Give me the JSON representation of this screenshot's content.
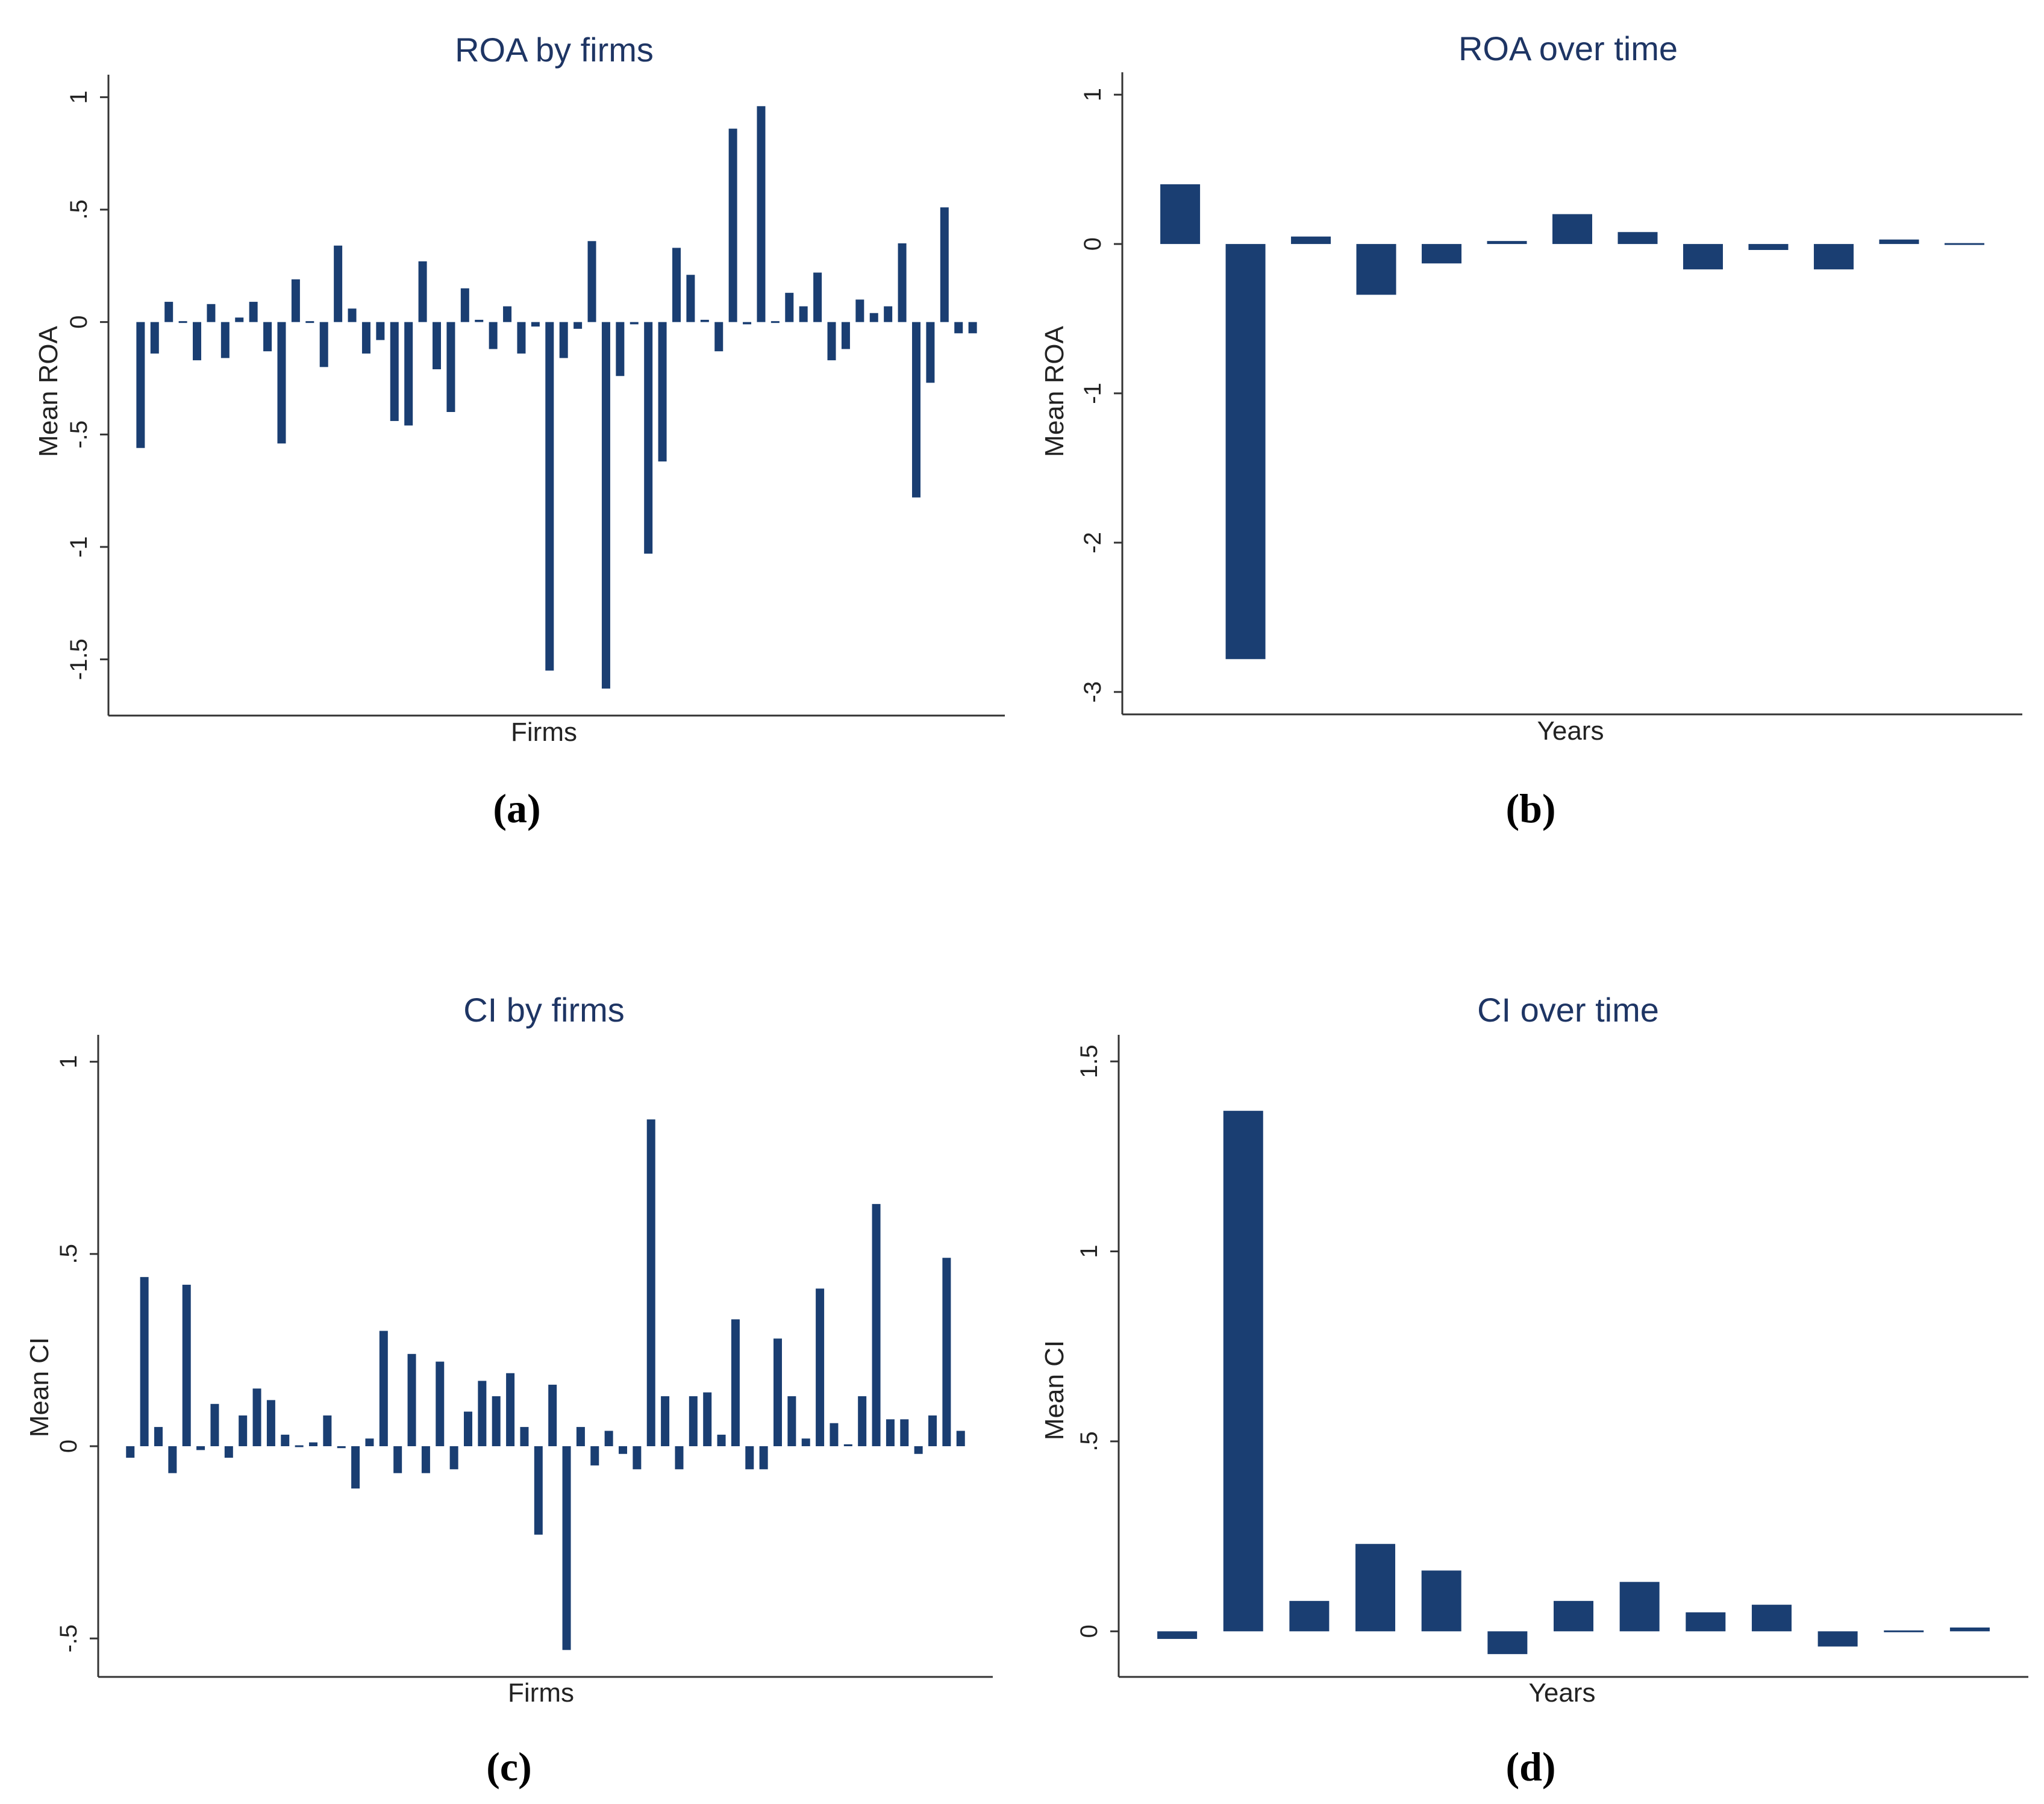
{
  "colors": {
    "bar": "#1a3e72",
    "title": "#1e3564",
    "axis": "#333333"
  },
  "chart_data": [
    {
      "panel_label": "(a)",
      "type": "bar",
      "title": "ROA by firms",
      "xlabel": "Firms",
      "ylabel": "Mean ROA",
      "ylim": [
        -1.75,
        1.1
      ],
      "yticks": [
        1,
        0.5,
        0,
        -0.5,
        -1,
        -1.5
      ],
      "ytick_labels": [
        "1",
        ".5",
        "0",
        "-.5",
        "-1",
        "-1.5"
      ],
      "values": [
        -0.56,
        -0.14,
        0.09,
        0,
        -0.17,
        0.08,
        -0.16,
        0.02,
        0.09,
        -0.13,
        -0.54,
        0.19,
        0,
        -0.2,
        0.34,
        0.06,
        -0.14,
        -0.08,
        -0.44,
        -0.46,
        0.27,
        -0.21,
        -0.4,
        0.15,
        0.01,
        -0.12,
        0.07,
        -0.14,
        -0.02,
        -1.55,
        -0.16,
        -0.03,
        0.36,
        -1.63,
        -0.24,
        -0.01,
        -1.03,
        -0.62,
        0.33,
        0.21,
        0.01,
        -0.13,
        0.86,
        -0.01,
        0.96,
        0,
        0.13,
        0.07,
        0.22,
        -0.17,
        -0.12,
        0.1,
        0.04,
        0.07,
        0.35,
        -0.78,
        -0.27,
        0.51,
        -0.05,
        -0.05
      ]
    },
    {
      "panel_label": "(b)",
      "type": "bar",
      "title": "ROA over time",
      "xlabel": "Years",
      "ylabel": "Mean ROA",
      "ylim": [
        -3.15,
        1.15
      ],
      "yticks": [
        1,
        0,
        -1,
        -2,
        -3
      ],
      "ytick_labels": [
        "1",
        "0",
        "-1",
        "-2",
        "-3"
      ],
      "values": [
        0.4,
        -2.78,
        0.05,
        -0.34,
        -0.13,
        0.02,
        0.2,
        0.08,
        -0.17,
        -0.04,
        -0.17,
        0.03,
        -0.01
      ]
    },
    {
      "panel_label": "(c)",
      "type": "bar",
      "title": "CI by firms",
      "xlabel": "Firms",
      "ylabel": "Mean CI",
      "ylim": [
        -0.6,
        1.07
      ],
      "yticks": [
        1,
        0.5,
        0,
        -0.5
      ],
      "ytick_labels": [
        "1",
        ".5",
        "0",
        "-.5"
      ],
      "values": [
        -0.03,
        0.44,
        0.05,
        -0.07,
        0.42,
        -0.01,
        0.11,
        -0.03,
        0.08,
        0.15,
        0.12,
        0.03,
        0,
        0.01,
        0.08,
        -0.005,
        -0.11,
        0.02,
        0.3,
        -0.07,
        0.24,
        -0.07,
        0.22,
        -0.06,
        0.09,
        0.17,
        0.13,
        0.19,
        0.05,
        -0.23,
        0.16,
        -0.53,
        0.05,
        -0.05,
        0.04,
        -0.02,
        -0.06,
        0.85,
        0.13,
        -0.06,
        0.13,
        0.14,
        0.03,
        0.33,
        -0.06,
        -0.06,
        0.28,
        0.13,
        0.02,
        0.41,
        0.06,
        0.005,
        0.13,
        0.63,
        0.07,
        0.07,
        -0.02,
        0.08,
        0.49,
        0.04
      ]
    },
    {
      "panel_label": "(d)",
      "type": "bar",
      "title": "CI over time",
      "xlabel": "Years",
      "ylabel": "Mean CI",
      "ylim": [
        -0.12,
        1.57
      ],
      "yticks": [
        1.5,
        1,
        0.5,
        0
      ],
      "ytick_labels": [
        "1.5",
        "1",
        ".5",
        "0"
      ],
      "values": [
        -0.02,
        1.37,
        0.08,
        0.23,
        0.16,
        -0.06,
        0.08,
        0.13,
        0.05,
        0.07,
        -0.04,
        0,
        0.01
      ]
    }
  ]
}
